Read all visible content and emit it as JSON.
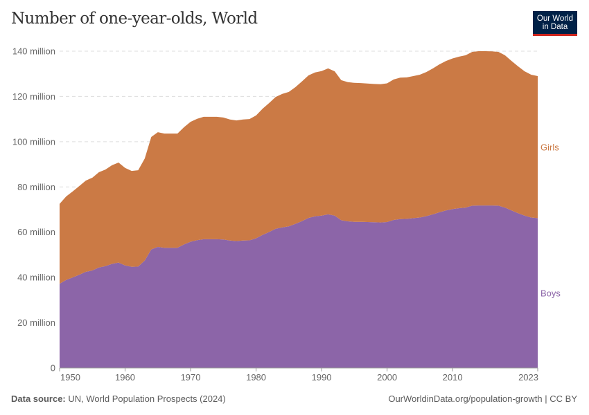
{
  "title": "Number of one-year-olds, World",
  "logo": {
    "line1": "Our World",
    "line2": "in Data"
  },
  "footer": {
    "source_label": "Data source:",
    "source": "UN, World Population Prospects (2024)",
    "link": "OurWorldinData.org/population-growth | CC BY"
  },
  "colors": {
    "boys": "#8c65a8",
    "girls": "#cb7a45",
    "grid": "#dddddd"
  },
  "chart_data": {
    "type": "area",
    "stacked": true,
    "title": "Number of one-year-olds, World",
    "xlim": [
      1950,
      2023
    ],
    "ylim": [
      0,
      140000000
    ],
    "grid": true,
    "y_ticks": [
      {
        "v": 0,
        "label": "0"
      },
      {
        "v": 20000000,
        "label": "20 million"
      },
      {
        "v": 40000000,
        "label": "40 million"
      },
      {
        "v": 60000000,
        "label": "60 million"
      },
      {
        "v": 80000000,
        "label": "80 million"
      },
      {
        "v": 100000000,
        "label": "100 million"
      },
      {
        "v": 120000000,
        "label": "120 million"
      },
      {
        "v": 140000000,
        "label": "140 million"
      }
    ],
    "x_ticks": [
      {
        "v": 1950,
        "label": "1950"
      },
      {
        "v": 1960,
        "label": "1960"
      },
      {
        "v": 1970,
        "label": "1970"
      },
      {
        "v": 1980,
        "label": "1980"
      },
      {
        "v": 1990,
        "label": "1990"
      },
      {
        "v": 2000,
        "label": "2000"
      },
      {
        "v": 2010,
        "label": "2010"
      },
      {
        "v": 2023,
        "label": "2023"
      }
    ],
    "unit": "million",
    "x": [
      1950,
      1951,
      1952,
      1953,
      1954,
      1955,
      1956,
      1957,
      1958,
      1959,
      1960,
      1961,
      1962,
      1963,
      1964,
      1965,
      1966,
      1967,
      1968,
      1969,
      1970,
      1971,
      1972,
      1973,
      1974,
      1975,
      1976,
      1977,
      1978,
      1979,
      1980,
      1981,
      1982,
      1983,
      1984,
      1985,
      1986,
      1987,
      1988,
      1989,
      1990,
      1991,
      1992,
      1993,
      1994,
      1995,
      1996,
      1997,
      1998,
      1999,
      2000,
      2001,
      2002,
      2003,
      2004,
      2005,
      2006,
      2007,
      2008,
      2009,
      2010,
      2011,
      2012,
      2013,
      2014,
      2015,
      2016,
      2017,
      2018,
      2019,
      2020,
      2021,
      2022,
      2023
    ],
    "series": [
      {
        "name": "Boys",
        "values": [
          37.2,
          38.9,
          40.0,
          41.2,
          42.5,
          43.1,
          44.4,
          45.0,
          46.0,
          46.6,
          45.3,
          44.7,
          44.8,
          47.5,
          52.4,
          53.5,
          53.1,
          53.1,
          53.1,
          54.6,
          55.8,
          56.5,
          56.9,
          56.9,
          56.9,
          56.8,
          56.3,
          56.1,
          56.3,
          56.4,
          57.3,
          58.8,
          60.1,
          61.5,
          62.1,
          62.6,
          63.7,
          64.9,
          66.3,
          67.0,
          67.3,
          67.9,
          67.3,
          65.3,
          64.8,
          64.6,
          64.6,
          64.5,
          64.4,
          64.3,
          64.5,
          65.4,
          65.8,
          65.9,
          66.2,
          66.5,
          67.1,
          67.9,
          68.8,
          69.6,
          70.2,
          70.6,
          70.9,
          71.7,
          71.8,
          71.8,
          71.8,
          71.7,
          70.9,
          69.6,
          68.4,
          67.3,
          66.5,
          66.2
        ]
      },
      {
        "name": "Girls",
        "values": [
          35.3,
          36.9,
          38.0,
          39.2,
          40.3,
          41.0,
          42.1,
          42.7,
          43.6,
          44.2,
          43.1,
          42.4,
          42.6,
          45.1,
          49.7,
          50.7,
          50.5,
          50.5,
          50.5,
          51.8,
          53.0,
          53.6,
          54.1,
          54.1,
          54.1,
          53.9,
          53.5,
          53.3,
          53.5,
          53.6,
          54.3,
          55.8,
          57.0,
          58.3,
          59.0,
          59.4,
          60.4,
          61.7,
          63.0,
          63.6,
          63.9,
          64.5,
          63.8,
          61.9,
          61.5,
          61.4,
          61.3,
          61.2,
          61.1,
          61.1,
          61.3,
          62.1,
          62.5,
          62.5,
          62.8,
          63.1,
          63.7,
          64.5,
          65.4,
          66.1,
          66.6,
          67.0,
          67.3,
          68.0,
          68.2,
          68.2,
          68.1,
          68.0,
          67.3,
          66.1,
          64.9,
          63.8,
          63.1,
          62.8
        ]
      }
    ]
  }
}
